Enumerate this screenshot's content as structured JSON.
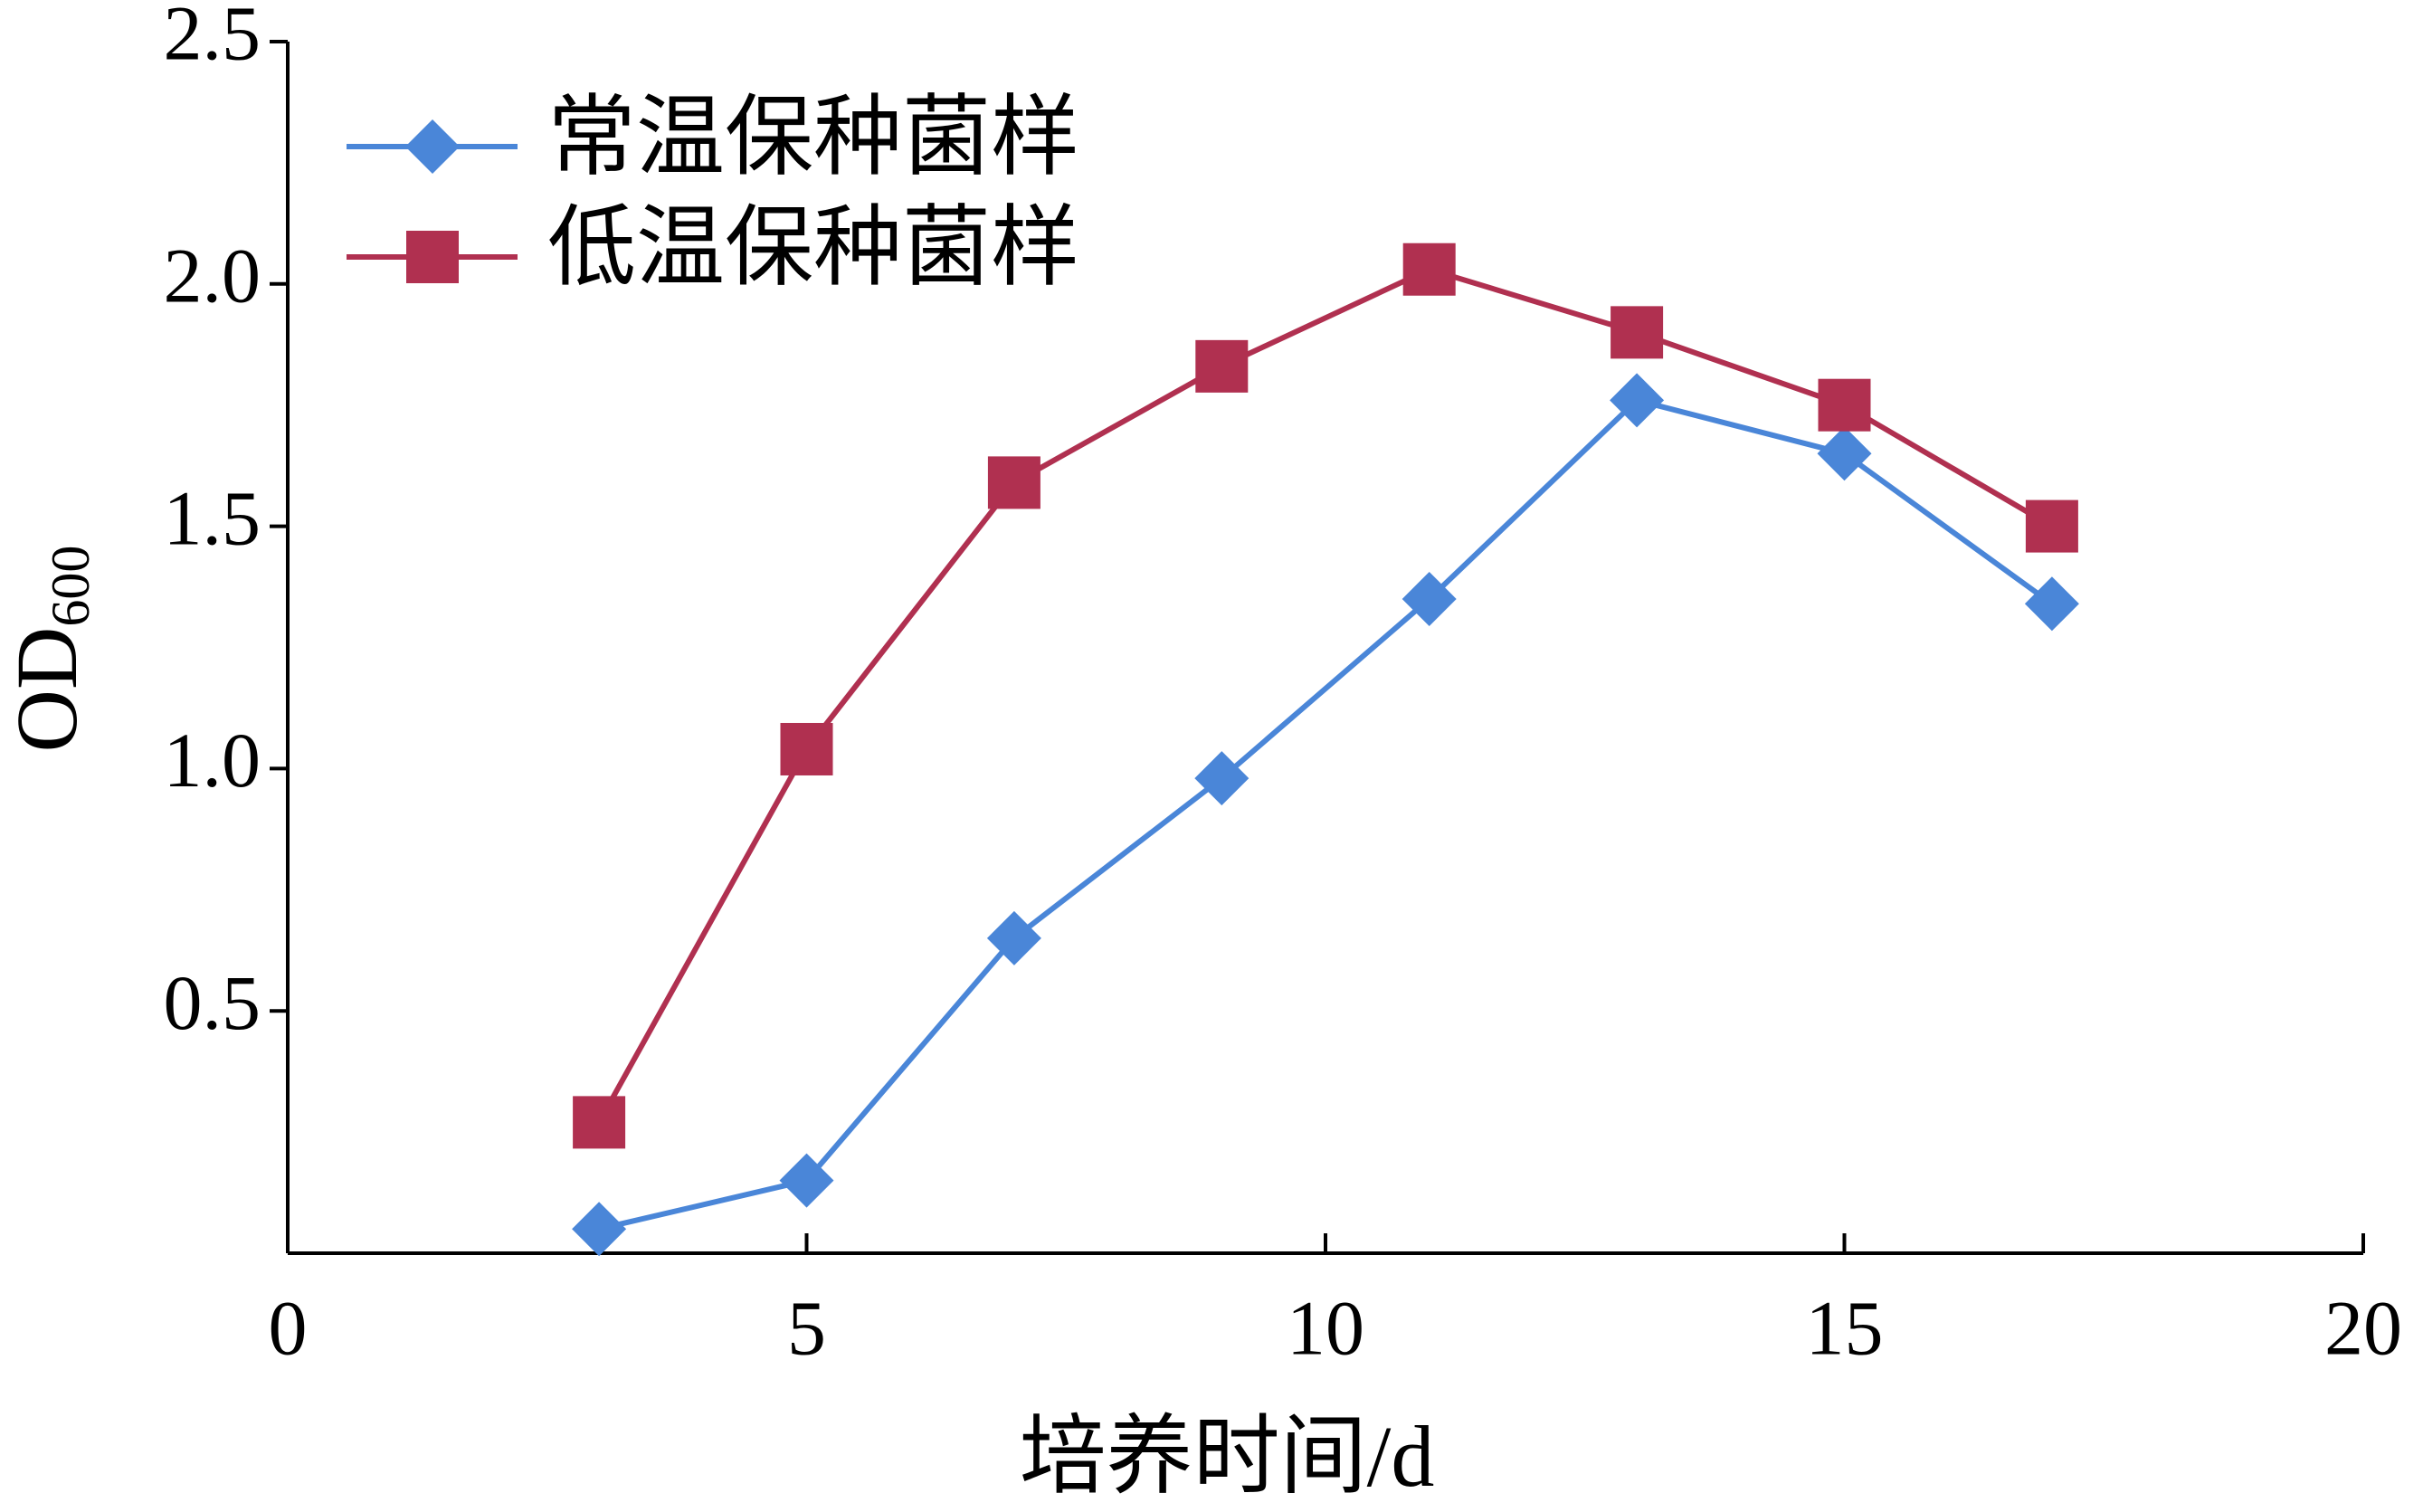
{
  "chart_data": {
    "type": "line",
    "x_label": "培养时间/d",
    "y_label": "OD",
    "y_label_subscript": "600",
    "x": [
      3,
      5,
      7,
      9,
      11,
      13,
      15,
      17
    ],
    "series": [
      {
        "name": "常温保种菌样",
        "color": "#4a86d8",
        "marker": "diamond",
        "values": [
          0.05,
          0.15,
          0.65,
          0.98,
          1.35,
          1.76,
          1.65,
          1.34
        ]
      },
      {
        "name": "低温保种菌样",
        "color": "#b03050",
        "marker": "square",
        "values": [
          0.27,
          1.04,
          1.59,
          1.83,
          2.03,
          1.9,
          1.75,
          1.5
        ]
      }
    ],
    "xlim": [
      0,
      20
    ],
    "xticks": [
      0,
      5,
      10,
      15,
      20
    ],
    "ylim": [
      0,
      2.5
    ],
    "yticks": [
      0.5,
      {
        "value": 1,
        "label": "1.0"
      },
      1.5,
      {
        "value": 2,
        "label": "2.0"
      },
      2.5
    ],
    "legend": "upper-left",
    "grid": false
  }
}
